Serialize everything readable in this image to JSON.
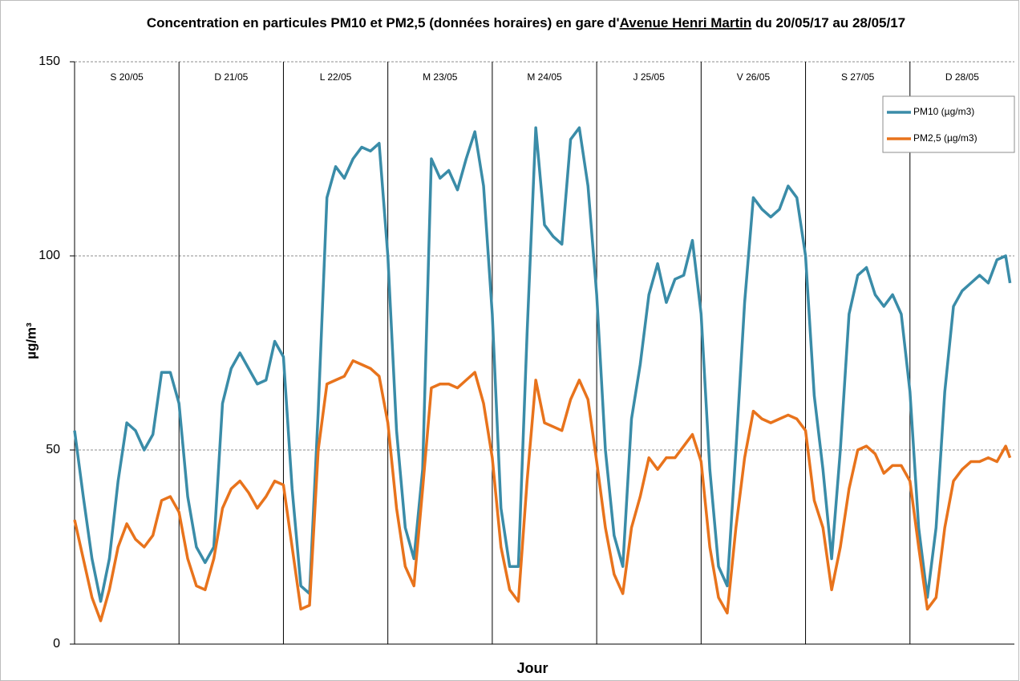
{
  "chart_data": {
    "type": "line",
    "title": [
      "Concentration en particules PM10 et PM2,5 (données horaires) en gare d'",
      "Avenue Henri Martin",
      " du 20/05/17 au 28/05/17"
    ],
    "x_label": "Jour",
    "y_label": "µg/m³",
    "day_labels": [
      "S 20/05",
      "D 21/05",
      "L 22/05",
      "M 23/05",
      "M 24/05",
      "J 25/05",
      "V 26/05",
      "S 27/05",
      "D 28/05"
    ],
    "xlim": [
      0,
      216
    ],
    "ylim": [
      0,
      150
    ],
    "yticks": [
      0,
      50,
      100,
      150
    ],
    "grid": true,
    "legend": "upper right",
    "x": [
      0,
      2,
      4,
      6,
      8,
      10,
      12,
      14,
      16,
      18,
      20,
      22,
      24,
      26,
      28,
      30,
      32,
      34,
      36,
      38,
      40,
      42,
      44,
      46,
      48,
      50,
      52,
      54,
      56,
      58,
      60,
      62,
      64,
      66,
      68,
      70,
      72,
      74,
      76,
      78,
      80,
      82,
      84,
      86,
      88,
      90,
      92,
      94,
      96,
      98,
      100,
      102,
      104,
      106,
      108,
      110,
      112,
      114,
      116,
      118,
      120,
      122,
      124,
      126,
      128,
      130,
      132,
      134,
      136,
      138,
      140,
      142,
      144,
      146,
      148,
      150,
      152,
      154,
      156,
      158,
      160,
      162,
      164,
      166,
      168,
      170,
      172,
      174,
      176,
      178,
      180,
      182,
      184,
      186,
      188,
      190,
      192,
      194,
      196,
      198,
      200,
      202,
      204,
      206,
      208,
      210,
      212,
      214,
      215
    ],
    "series": [
      {
        "name": "PM10 (µg/m3)",
        "color": "#3a8ca8",
        "values": [
          55,
          38,
          22,
          11,
          22,
          42,
          57,
          55,
          50,
          54,
          70,
          70,
          62,
          38,
          25,
          21,
          25,
          62,
          71,
          75,
          71,
          67,
          68,
          78,
          74,
          40,
          15,
          13,
          60,
          115,
          123,
          120,
          125,
          128,
          127,
          129,
          100,
          55,
          30,
          22,
          45,
          125,
          120,
          122,
          117,
          125,
          132,
          118,
          85,
          35,
          20,
          20,
          80,
          133,
          108,
          105,
          103,
          130,
          133,
          118,
          90,
          50,
          28,
          20,
          58,
          72,
          90,
          98,
          88,
          94,
          95,
          104,
          85,
          45,
          20,
          15,
          50,
          88,
          115,
          112,
          110,
          112,
          118,
          115,
          100,
          64,
          45,
          22,
          50,
          85,
          95,
          97,
          90,
          87,
          90,
          85,
          65,
          30,
          12,
          30,
          65,
          87,
          91,
          93,
          95,
          93,
          99,
          100,
          93
        ]
      },
      {
        "name": "PM2,5 (µg/m3)",
        "color": "#e8731c",
        "values": [
          32,
          22,
          12,
          6,
          14,
          25,
          31,
          27,
          25,
          28,
          37,
          38,
          34,
          22,
          15,
          14,
          22,
          35,
          40,
          42,
          39,
          35,
          38,
          42,
          41,
          25,
          9,
          10,
          50,
          67,
          68,
          69,
          73,
          72,
          71,
          69,
          57,
          35,
          20,
          15,
          40,
          66,
          67,
          67,
          66,
          68,
          70,
          62,
          48,
          25,
          14,
          11,
          42,
          68,
          57,
          56,
          55,
          63,
          68,
          63,
          47,
          30,
          18,
          13,
          30,
          38,
          48,
          45,
          48,
          48,
          51,
          54,
          47,
          25,
          12,
          8,
          30,
          48,
          60,
          58,
          57,
          58,
          59,
          58,
          55,
          37,
          30,
          14,
          25,
          40,
          50,
          51,
          49,
          44,
          46,
          46,
          42,
          25,
          9,
          12,
          30,
          42,
          45,
          47,
          47,
          48,
          47,
          51,
          48
        ]
      }
    ]
  }
}
